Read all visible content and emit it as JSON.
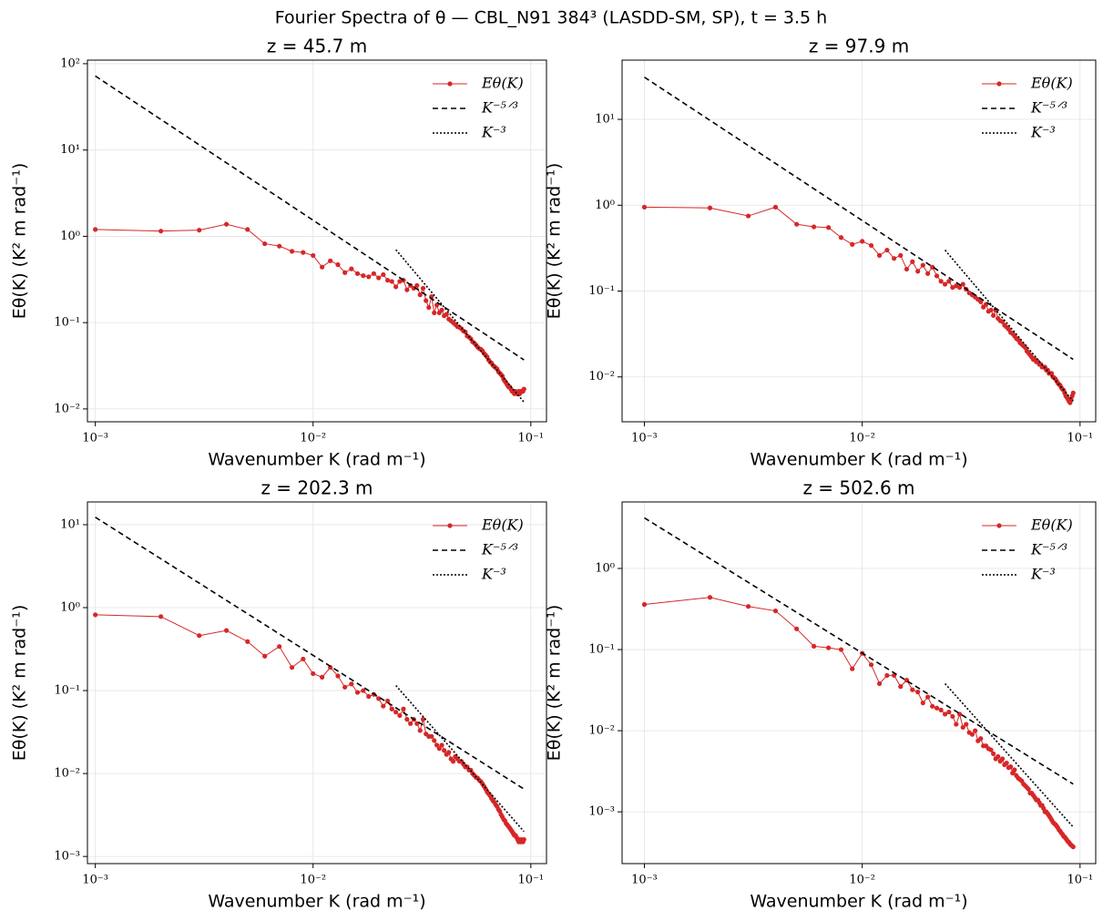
{
  "title": "Fourier Spectra of θ — CBL_N91 384³ (LASDD-SM, SP), t = 3.5 h",
  "chart_data": [
    {
      "type": "line",
      "title": "z = 45.7 m",
      "xlabel": "Wavenumber K (rad m⁻¹)",
      "ylabel": "Eθ(K) (K² m rad⁻¹)",
      "log_x": true,
      "log_y": true,
      "grid": true,
      "legend": "upper right",
      "x": [
        0.001,
        0.002,
        0.003,
        0.004,
        0.005,
        0.006,
        0.007,
        0.008,
        0.009,
        0.01,
        0.011,
        0.012,
        0.013,
        0.014,
        0.015,
        0.016,
        0.017,
        0.018,
        0.019,
        0.02,
        0.021,
        0.022,
        0.023,
        0.024,
        0.025,
        0.026,
        0.027,
        0.028,
        0.029,
        0.03,
        0.031,
        0.032,
        0.033,
        0.034,
        0.035,
        0.036,
        0.037,
        0.038,
        0.039,
        0.04,
        0.041,
        0.042,
        0.043,
        0.044,
        0.045,
        0.046,
        0.047,
        0.048,
        0.049,
        0.05,
        0.051,
        0.052,
        0.053,
        0.054,
        0.055,
        0.056,
        0.057,
        0.058,
        0.059,
        0.06,
        0.061,
        0.062,
        0.063,
        0.064,
        0.065,
        0.066,
        0.067,
        0.068,
        0.069,
        0.07,
        0.071,
        0.072,
        0.073,
        0.074,
        0.075,
        0.076,
        0.077,
        0.078,
        0.079,
        0.08,
        0.081,
        0.082,
        0.083,
        0.084,
        0.085,
        0.086,
        0.087,
        0.088,
        0.089,
        0.09,
        0.091,
        0.092,
        0.093
      ],
      "series": [
        {
          "name": "Eθ(K)",
          "color": "#d62728",
          "style": "solid-markers",
          "values": [
            1.2,
            1.15,
            1.18,
            1.38,
            1.2,
            0.82,
            0.77,
            0.67,
            0.65,
            0.6,
            0.44,
            0.52,
            0.47,
            0.38,
            0.42,
            0.37,
            0.35,
            0.34,
            0.37,
            0.33,
            0.36,
            0.31,
            0.3,
            0.26,
            0.3,
            0.31,
            0.24,
            0.27,
            0.25,
            0.27,
            0.21,
            0.25,
            0.18,
            0.15,
            0.2,
            0.13,
            0.16,
            0.13,
            0.14,
            0.12,
            0.125,
            0.11,
            0.105,
            0.1,
            0.095,
            0.09,
            0.088,
            0.085,
            0.08,
            0.078,
            0.07,
            0.068,
            0.065,
            0.06,
            0.058,
            0.055,
            0.052,
            0.05,
            0.049,
            0.047,
            0.044,
            0.042,
            0.04,
            0.037,
            0.035,
            0.034,
            0.032,
            0.031,
            0.03,
            0.029,
            0.027,
            0.026,
            0.025,
            0.024,
            0.022,
            0.021,
            0.02,
            0.019,
            0.018,
            0.018,
            0.017,
            0.016,
            0.016,
            0.015,
            0.016,
            0.015,
            0.015,
            0.016,
            0.015,
            0.016,
            0.016,
            0.016,
            0.017
          ]
        },
        {
          "name": "K⁻⁵ᐟ³",
          "color": "#000000",
          "style": "dashed",
          "x": [
            0.001,
            0.093
          ],
          "values": [
            72,
            0.037
          ]
        },
        {
          "name": "K⁻³",
          "color": "#000000",
          "style": "dotted",
          "x": [
            0.024,
            0.093
          ],
          "values": [
            0.7,
            0.012
          ]
        }
      ],
      "xlim": [
        0.00092,
        0.118
      ],
      "ylim": [
        0.0071,
        110
      ],
      "xticks": [
        {
          "value": 0.001,
          "label": "10⁻³"
        },
        {
          "value": 0.01,
          "label": "10⁻²"
        },
        {
          "value": 0.1,
          "label": "10⁻¹"
        }
      ],
      "yticks": [
        {
          "value": 0.01,
          "label": "10⁻²"
        },
        {
          "value": 0.1,
          "label": "10⁻¹"
        },
        {
          "value": 1,
          "label": "10⁰"
        },
        {
          "value": 10,
          "label": "10¹"
        },
        {
          "value": 100,
          "label": "10²"
        }
      ]
    },
    {
      "type": "line",
      "title": "z = 97.9 m",
      "xlabel": "Wavenumber K (rad m⁻¹)",
      "ylabel": "Eθ(K) (K² m rad⁻¹)",
      "log_x": true,
      "log_y": true,
      "grid": true,
      "legend": "upper right",
      "x": [
        0.001,
        0.002,
        0.003,
        0.004,
        0.005,
        0.006,
        0.007,
        0.008,
        0.009,
        0.01,
        0.011,
        0.012,
        0.013,
        0.014,
        0.015,
        0.016,
        0.017,
        0.018,
        0.019,
        0.02,
        0.021,
        0.022,
        0.023,
        0.024,
        0.025,
        0.026,
        0.027,
        0.028,
        0.029,
        0.03,
        0.031,
        0.032,
        0.033,
        0.034,
        0.035,
        0.036,
        0.037,
        0.038,
        0.039,
        0.04,
        0.041,
        0.042,
        0.043,
        0.044,
        0.045,
        0.046,
        0.047,
        0.048,
        0.049,
        0.05,
        0.051,
        0.052,
        0.053,
        0.054,
        0.055,
        0.056,
        0.057,
        0.058,
        0.059,
        0.06,
        0.061,
        0.062,
        0.063,
        0.064,
        0.065,
        0.066,
        0.067,
        0.068,
        0.069,
        0.07,
        0.071,
        0.072,
        0.073,
        0.074,
        0.075,
        0.076,
        0.077,
        0.078,
        0.079,
        0.08,
        0.081,
        0.082,
        0.083,
        0.084,
        0.085,
        0.086,
        0.087,
        0.088,
        0.089,
        0.09,
        0.091,
        0.092,
        0.093
      ],
      "series": [
        {
          "name": "Eθ(K)",
          "color": "#d62728",
          "style": "solid-markers",
          "values": [
            0.95,
            0.93,
            0.75,
            0.95,
            0.6,
            0.56,
            0.55,
            0.42,
            0.35,
            0.38,
            0.34,
            0.26,
            0.3,
            0.24,
            0.26,
            0.18,
            0.22,
            0.17,
            0.2,
            0.16,
            0.19,
            0.15,
            0.13,
            0.12,
            0.13,
            0.11,
            0.115,
            0.11,
            0.12,
            0.105,
            0.095,
            0.09,
            0.085,
            0.08,
            0.075,
            0.065,
            0.07,
            0.058,
            0.06,
            0.052,
            0.06,
            0.048,
            0.045,
            0.044,
            0.04,
            0.038,
            0.036,
            0.033,
            0.032,
            0.03,
            0.028,
            0.027,
            0.025,
            0.024,
            0.023,
            0.022,
            0.02,
            0.019,
            0.018,
            0.017,
            0.016,
            0.016,
            0.015,
            0.015,
            0.014,
            0.014,
            0.013,
            0.013,
            0.013,
            0.012,
            0.012,
            0.011,
            0.011,
            0.011,
            0.01,
            0.0098,
            0.0095,
            0.009,
            0.0085,
            0.0082,
            0.008,
            0.0075,
            0.0072,
            0.007,
            0.0065,
            0.006,
            0.0058,
            0.0055,
            0.0052,
            0.005,
            0.0055,
            0.006,
            0.0065
          ]
        },
        {
          "name": "K⁻⁵ᐟ³",
          "color": "#000000",
          "style": "dashed",
          "x": [
            0.001,
            0.093
          ],
          "values": [
            31,
            0.016
          ]
        },
        {
          "name": "K⁻³",
          "color": "#000000",
          "style": "dotted",
          "x": [
            0.024,
            0.093
          ],
          "values": [
            0.3,
            0.0052
          ]
        }
      ],
      "xlim": [
        0.00079,
        0.118
      ],
      "ylim": [
        0.003,
        49
      ],
      "xticks": [
        {
          "value": 0.001,
          "label": "10⁻³"
        },
        {
          "value": 0.01,
          "label": "10⁻²"
        },
        {
          "value": 0.1,
          "label": "10⁻¹"
        }
      ],
      "yticks": [
        {
          "value": 0.01,
          "label": "10⁻²"
        },
        {
          "value": 0.1,
          "label": "10⁻¹"
        },
        {
          "value": 1,
          "label": "10⁰"
        },
        {
          "value": 10,
          "label": "10¹"
        }
      ]
    },
    {
      "type": "line",
      "title": "z = 202.3 m",
      "xlabel": "Wavenumber K (rad m⁻¹)",
      "ylabel": "Eθ(K) (K² m rad⁻¹)",
      "log_x": true,
      "log_y": true,
      "grid": true,
      "legend": "upper right",
      "x": [
        0.001,
        0.002,
        0.003,
        0.004,
        0.005,
        0.006,
        0.007,
        0.008,
        0.009,
        0.01,
        0.011,
        0.012,
        0.013,
        0.014,
        0.015,
        0.016,
        0.017,
        0.018,
        0.019,
        0.02,
        0.021,
        0.022,
        0.023,
        0.024,
        0.025,
        0.026,
        0.027,
        0.028,
        0.029,
        0.03,
        0.031,
        0.032,
        0.033,
        0.034,
        0.035,
        0.036,
        0.037,
        0.038,
        0.039,
        0.04,
        0.041,
        0.042,
        0.043,
        0.044,
        0.045,
        0.046,
        0.047,
        0.048,
        0.049,
        0.05,
        0.051,
        0.052,
        0.053,
        0.054,
        0.055,
        0.056,
        0.057,
        0.058,
        0.059,
        0.06,
        0.061,
        0.062,
        0.063,
        0.064,
        0.065,
        0.066,
        0.067,
        0.068,
        0.069,
        0.07,
        0.071,
        0.072,
        0.073,
        0.074,
        0.075,
        0.076,
        0.077,
        0.078,
        0.079,
        0.08,
        0.081,
        0.082,
        0.083,
        0.084,
        0.085,
        0.086,
        0.087,
        0.088,
        0.089,
        0.09,
        0.091,
        0.092,
        0.093
      ],
      "series": [
        {
          "name": "Eθ(K)",
          "color": "#d62728",
          "style": "solid-markers",
          "values": [
            0.82,
            0.78,
            0.46,
            0.53,
            0.39,
            0.26,
            0.34,
            0.19,
            0.24,
            0.16,
            0.145,
            0.19,
            0.15,
            0.11,
            0.12,
            0.095,
            0.1,
            0.085,
            0.09,
            0.08,
            0.065,
            0.075,
            0.06,
            0.055,
            0.05,
            0.06,
            0.045,
            0.04,
            0.045,
            0.04,
            0.033,
            0.045,
            0.03,
            0.028,
            0.028,
            0.025,
            0.022,
            0.02,
            0.022,
            0.019,
            0.017,
            0.018,
            0.015,
            0.014,
            0.016,
            0.015,
            0.014,
            0.014,
            0.013,
            0.012,
            0.012,
            0.011,
            0.011,
            0.01,
            0.0095,
            0.009,
            0.0088,
            0.0083,
            0.008,
            0.0075,
            0.007,
            0.0065,
            0.006,
            0.0057,
            0.0054,
            0.005,
            0.0047,
            0.0045,
            0.0042,
            0.004,
            0.0037,
            0.0035,
            0.0032,
            0.003,
            0.0028,
            0.0027,
            0.0025,
            0.0024,
            0.0023,
            0.0022,
            0.0021,
            0.002,
            0.0019,
            0.0018,
            0.0018,
            0.0017,
            0.0016,
            0.0015,
            0.0016,
            0.0015,
            0.0016,
            0.0015,
            0.0016
          ]
        },
        {
          "name": "K⁻⁵ᐟ³",
          "color": "#000000",
          "style": "dashed",
          "x": [
            0.001,
            0.093
          ],
          "values": [
            12.3,
            0.0065
          ]
        },
        {
          "name": "K⁻³",
          "color": "#000000",
          "style": "dotted",
          "x": [
            0.024,
            0.093
          ],
          "values": [
            0.115,
            0.002
          ]
        }
      ],
      "xlim": [
        0.00092,
        0.118
      ],
      "ylim": [
        0.00082,
        18.8
      ],
      "xticks": [
        {
          "value": 0.001,
          "label": "10⁻³"
        },
        {
          "value": 0.01,
          "label": "10⁻²"
        },
        {
          "value": 0.1,
          "label": "10⁻¹"
        }
      ],
      "yticks": [
        {
          "value": 0.001,
          "label": "10⁻³"
        },
        {
          "value": 0.01,
          "label": "10⁻²"
        },
        {
          "value": 0.1,
          "label": "10⁻¹"
        },
        {
          "value": 1,
          "label": "10⁰"
        },
        {
          "value": 10,
          "label": "10¹"
        }
      ]
    },
    {
      "type": "line",
      "title": "z = 502.6 m",
      "xlabel": "Wavenumber K (rad m⁻¹)",
      "ylabel": "Eθ(K) (K² m rad⁻¹)",
      "log_x": true,
      "log_y": true,
      "grid": true,
      "legend": "upper right",
      "x": [
        0.001,
        0.002,
        0.003,
        0.004,
        0.005,
        0.006,
        0.007,
        0.008,
        0.009,
        0.01,
        0.011,
        0.012,
        0.013,
        0.014,
        0.015,
        0.016,
        0.017,
        0.018,
        0.019,
        0.02,
        0.021,
        0.022,
        0.023,
        0.024,
        0.025,
        0.026,
        0.027,
        0.028,
        0.029,
        0.03,
        0.031,
        0.032,
        0.033,
        0.034,
        0.035,
        0.036,
        0.037,
        0.038,
        0.039,
        0.04,
        0.041,
        0.042,
        0.043,
        0.044,
        0.045,
        0.046,
        0.047,
        0.048,
        0.049,
        0.05,
        0.051,
        0.052,
        0.053,
        0.054,
        0.055,
        0.056,
        0.057,
        0.058,
        0.059,
        0.06,
        0.061,
        0.062,
        0.063,
        0.064,
        0.065,
        0.066,
        0.067,
        0.068,
        0.069,
        0.07,
        0.071,
        0.072,
        0.073,
        0.074,
        0.075,
        0.076,
        0.077,
        0.078,
        0.079,
        0.08,
        0.081,
        0.082,
        0.083,
        0.084,
        0.085,
        0.086,
        0.087,
        0.088,
        0.089,
        0.09,
        0.091,
        0.092,
        0.093
      ],
      "series": [
        {
          "name": "Eθ(K)",
          "color": "#d62728",
          "style": "solid-markers",
          "values": [
            0.36,
            0.44,
            0.34,
            0.3,
            0.18,
            0.11,
            0.105,
            0.1,
            0.058,
            0.09,
            0.065,
            0.038,
            0.048,
            0.048,
            0.035,
            0.042,
            0.032,
            0.03,
            0.022,
            0.026,
            0.02,
            0.019,
            0.018,
            0.016,
            0.017,
            0.015,
            0.012,
            0.016,
            0.011,
            0.012,
            0.0095,
            0.009,
            0.01,
            0.0075,
            0.008,
            0.0065,
            0.0065,
            0.006,
            0.0058,
            0.0052,
            0.0045,
            0.0048,
            0.0042,
            0.0045,
            0.0038,
            0.004,
            0.0035,
            0.0036,
            0.003,
            0.0033,
            0.0028,
            0.0026,
            0.0025,
            0.0024,
            0.0022,
            0.0021,
            0.002,
            0.0019,
            0.0017,
            0.0017,
            0.0016,
            0.0015,
            0.0014,
            0.0014,
            0.0013,
            0.0012,
            0.0012,
            0.0011,
            0.001,
            0.001,
            0.00095,
            0.0009,
            0.00085,
            0.0008,
            0.00075,
            0.00072,
            0.0007,
            0.00067,
            0.00064,
            0.0006,
            0.00058,
            0.00055,
            0.00053,
            0.0005,
            0.00049,
            0.00047,
            0.00045,
            0.00043,
            0.00042,
            0.0004,
            0.00039,
            0.00038,
            0.00037
          ]
        },
        {
          "name": "K⁻⁵ᐟ³",
          "color": "#000000",
          "style": "dashed",
          "x": [
            0.001,
            0.093
          ],
          "values": [
            4.2,
            0.0022
          ]
        },
        {
          "name": "K⁻³",
          "color": "#000000",
          "style": "dotted",
          "x": [
            0.024,
            0.093
          ],
          "values": [
            0.038,
            0.00065
          ]
        }
      ],
      "xlim": [
        0.00079,
        0.118
      ],
      "ylim": [
        0.00023,
        6.6
      ],
      "xticks": [
        {
          "value": 0.001,
          "label": "10⁻³"
        },
        {
          "value": 0.01,
          "label": "10⁻²"
        },
        {
          "value": 0.1,
          "label": "10⁻¹"
        }
      ],
      "yticks": [
        {
          "value": 0.001,
          "label": "10⁻³"
        },
        {
          "value": 0.01,
          "label": "10⁻²"
        },
        {
          "value": 0.1,
          "label": "10⁻¹"
        },
        {
          "value": 1,
          "label": "10⁰"
        }
      ]
    }
  ]
}
